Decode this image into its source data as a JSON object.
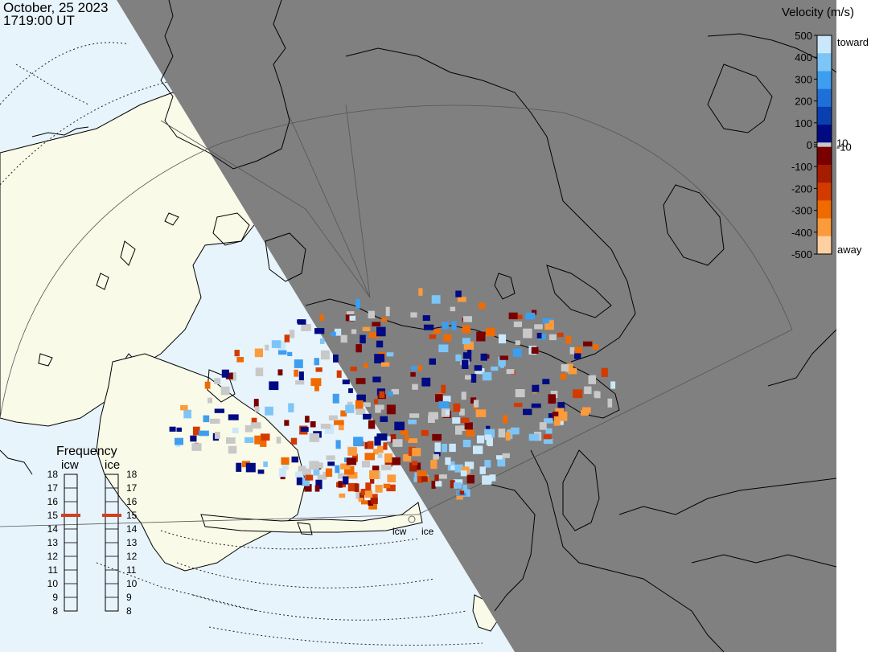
{
  "header": {
    "date": "October, 25 2023",
    "time": "1719:00 UT"
  },
  "colorbar": {
    "title": "Velocity (m/s)",
    "toward_label": "toward",
    "away_label": "away",
    "ticks": [
      {
        "label": "500",
        "value": 500
      },
      {
        "label": "400",
        "value": 400
      },
      {
        "label": "300",
        "value": 300
      },
      {
        "label": "200",
        "value": 200
      },
      {
        "label": "100",
        "value": 100
      },
      {
        "label": "10",
        "value": 10
      },
      {
        "label": "0",
        "value": 0
      },
      {
        "label": "-10",
        "value": -10
      },
      {
        "label": "-100",
        "value": -100
      },
      {
        "label": "-200",
        "value": -200
      },
      {
        "label": "-300",
        "value": -300
      },
      {
        "label": "-400",
        "value": -400
      },
      {
        "label": "-500",
        "value": -500
      }
    ],
    "ground_scatter_color": "#c8c8c8",
    "toward_colors": [
      "#000a82",
      "#0a3fb0",
      "#1f6fd8",
      "#3d9ef0",
      "#7dc5f7",
      "#cbe8fb"
    ],
    "away_colors": [
      "#7a0000",
      "#a61c00",
      "#d33a00",
      "#f06a00",
      "#fb9b3c",
      "#fdd0a2"
    ]
  },
  "frequency": {
    "title": "Frequency",
    "radars": [
      {
        "name": "icw",
        "selected": 15
      },
      {
        "name": "ice",
        "selected": 15
      }
    ],
    "levels": [
      "18",
      "17",
      "16",
      "15",
      "14",
      "13",
      "12",
      "11",
      "10",
      "9",
      "8"
    ]
  },
  "radar_sites": [
    {
      "name": "icw"
    },
    {
      "name": "ice"
    }
  ],
  "map": {
    "night_color": "#808080",
    "day_land_color": "#fafae8",
    "day_ocean_color": "#e8f4fc"
  }
}
